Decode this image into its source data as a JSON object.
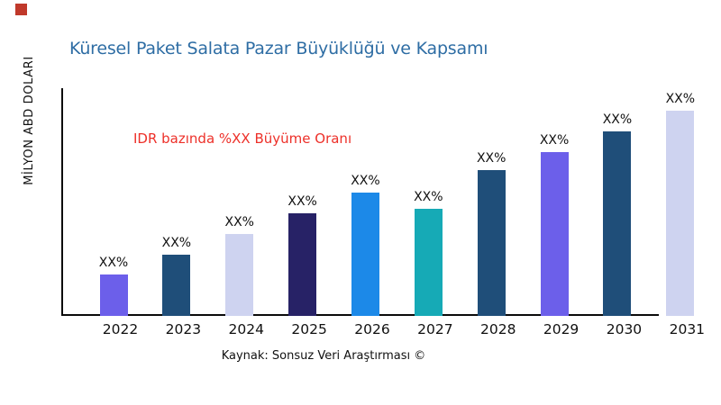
{
  "brand": {
    "square_color": "#C0392B"
  },
  "title": {
    "text": "Küresel Paket Salata Pazar Büyüklüğü ve Kapsamı",
    "color": "#2E6DA4"
  },
  "y_axis": {
    "label": "MİLYON ABD DOLARI"
  },
  "annotation": {
    "text": "IDR bazında %XX Büyüme Oranı",
    "color": "#ED3029"
  },
  "source": {
    "text": "Kaynak: Sonsuz Veri Araştırması ©"
  },
  "axis_color": "#0b0b0b",
  "text_color": "#111111",
  "chart_data": {
    "type": "bar",
    "title": "Küresel Paket Salata Pazar Büyüklüğü ve Kapsamı",
    "xlabel": "",
    "ylabel": "MİLYON ABD DOLARI",
    "categories": [
      "2022",
      "2023",
      "2024",
      "2025",
      "2026",
      "2027",
      "2028",
      "2029",
      "2030",
      "2031"
    ],
    "values": [
      20,
      30,
      40,
      50,
      60,
      52,
      71,
      80,
      90,
      100
    ],
    "values_note": "Numeric values are masked as XX% in the source chart; values given are relative bar heights (% of tallest 2031 bar).",
    "bar_labels": [
      "XX%",
      "XX%",
      "XX%",
      "XX%",
      "XX%",
      "XX%",
      "XX%",
      "XX%",
      "XX%",
      "XX%"
    ],
    "bar_colors": [
      "#6C5FEA",
      "#1F4E79",
      "#CED3F0",
      "#272266",
      "#1C89E8",
      "#16AAB6",
      "#1F4E79",
      "#6C5FEA",
      "#1F4E79",
      "#CED3F0"
    ],
    "grid": false,
    "legend": false,
    "ylim_shown": false
  }
}
